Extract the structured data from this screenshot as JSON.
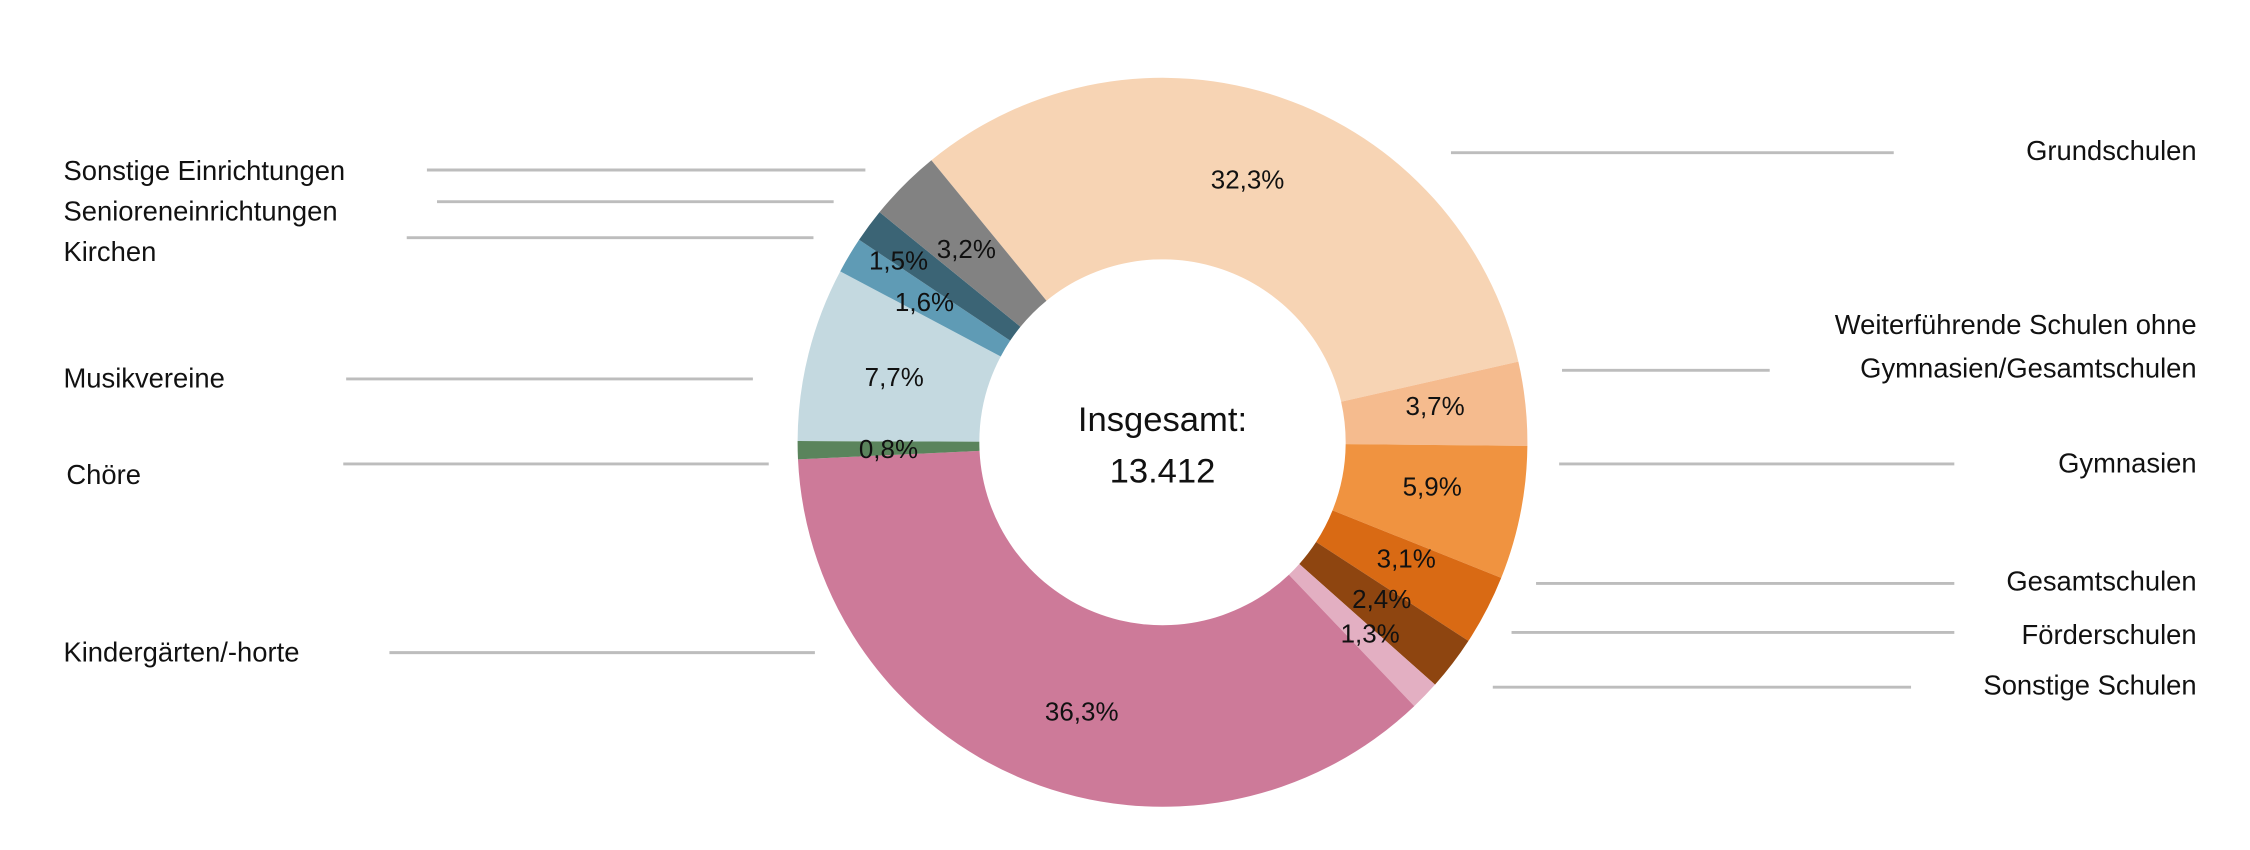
{
  "chart_data": {
    "type": "pie",
    "donut": true,
    "center_label": {
      "title": "Insgesamt:",
      "total": "13.412"
    },
    "slices": [
      {
        "name": "Grundschulen",
        "value": 32.3,
        "label": "32,3%",
        "color": "#f7d4b4"
      },
      {
        "name": "Weiterführende Schulen ohne",
        "name2": "Gymnasien/Gesamtschulen",
        "value": 3.7,
        "label": "3,7%",
        "color": "#f5bb8e"
      },
      {
        "name": "Gymnasien",
        "value": 5.9,
        "label": "5,9%",
        "color": "#f09340"
      },
      {
        "name": "Gesamtschulen",
        "value": 3.1,
        "label": "3,1%",
        "color": "#d96a14"
      },
      {
        "name": "Förderschulen",
        "value": 2.4,
        "label": "2,4%",
        "color": "#8e4510"
      },
      {
        "name": "Sonstige Schulen",
        "value": 1.3,
        "label": "1,3%",
        "color": "#e3afc2"
      },
      {
        "name": "Kindergärten/-horte",
        "value": 36.3,
        "label": "36,3%",
        "color": "#cd7a99"
      },
      {
        "name": "Chöre",
        "value": 0.8,
        "label": "0,8%",
        "color": "#5a845c"
      },
      {
        "name": "Musikvereine",
        "value": 7.7,
        "label": "7,7%",
        "color": "#c4d9e0"
      },
      {
        "name": "Kirchen",
        "value": 1.6,
        "label": "1,6%",
        "color": "#5f9bb5"
      },
      {
        "name": "Senioreneinrichtungen",
        "value": 1.5,
        "label": "1,5%",
        "color": "#3b6475"
      },
      {
        "name": "Sonstige Einrichtungen",
        "value": 3.2,
        "label": "3,2%",
        "color": "#828282"
      }
    ],
    "legend": "leader-lines"
  }
}
